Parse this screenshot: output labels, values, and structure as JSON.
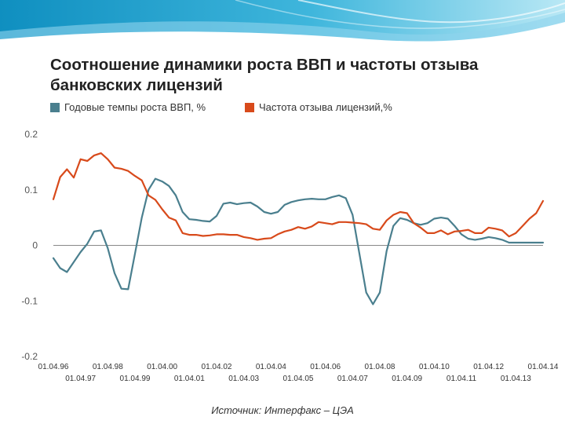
{
  "title": "Соотношение динамики роста ВВП и частоты отзыва банковских лицензий",
  "source": "Источник: Интерфакс – ЦЭА",
  "colors": {
    "gdp": "#4a7f8e",
    "revocation": "#d84a1b",
    "axis": "#555555"
  },
  "chart_data": {
    "type": "line",
    "title": "Соотношение динамики роста ВВП и частоты отзыва банковских лицензий",
    "xlabel": "",
    "ylabel": "",
    "ylim": [
      -0.2,
      0.2
    ],
    "yticks": [
      "0.2",
      "0.1",
      "0",
      "-0.1",
      "-0.2"
    ],
    "ytick_values": [
      0.2,
      0.1,
      0,
      -0.1,
      -0.2
    ],
    "xticks": [
      "01.04.96",
      "01.04.97",
      "01.04.98",
      "01.04.99",
      "01.04.00",
      "01.04.01",
      "01.04.02",
      "01.04.03",
      "01.04.04",
      "01.04.05",
      "01.04.06",
      "01.04.07",
      "01.04.08",
      "01.04.09",
      "01.04.10",
      "01.04.11",
      "01.04.12",
      "01.04.13",
      "01.04.14"
    ],
    "x_range": [
      1996.25,
      2014.25
    ],
    "grid": false,
    "legend_position": "top",
    "series": [
      {
        "name": "Годовые темпы роста ВВП, %",
        "color": "#4a7f8e",
        "x": [
          1996.25,
          1996.5,
          1996.75,
          1997.0,
          1997.25,
          1997.5,
          1997.75,
          1998.0,
          1998.25,
          1998.5,
          1998.75,
          1999.0,
          1999.25,
          1999.5,
          1999.75,
          2000.0,
          2000.25,
          2000.5,
          2000.75,
          2001.0,
          2001.25,
          2001.5,
          2001.75,
          2002.0,
          2002.25,
          2002.5,
          2002.75,
          2003.0,
          2003.25,
          2003.5,
          2003.75,
          2004.0,
          2004.25,
          2004.5,
          2004.75,
          2005.0,
          2005.25,
          2005.5,
          2005.75,
          2006.0,
          2006.25,
          2006.5,
          2006.75,
          2007.0,
          2007.25,
          2007.5,
          2007.75,
          2008.0,
          2008.25,
          2008.5,
          2008.75,
          2009.0,
          2009.25,
          2009.5,
          2009.75,
          2010.0,
          2010.25,
          2010.5,
          2010.75,
          2011.0,
          2011.25,
          2011.5,
          2011.75,
          2012.0,
          2012.25,
          2012.5,
          2012.75,
          2013.0,
          2013.25,
          2013.5,
          2013.75,
          2014.0,
          2014.25
        ],
        "values": [
          -0.023,
          -0.041,
          -0.048,
          -0.03,
          -0.012,
          0.003,
          0.025,
          0.027,
          -0.005,
          -0.05,
          -0.078,
          -0.079,
          -0.015,
          0.05,
          0.1,
          0.12,
          0.115,
          0.107,
          0.09,
          0.06,
          0.047,
          0.046,
          0.044,
          0.043,
          0.053,
          0.075,
          0.077,
          0.074,
          0.076,
          0.077,
          0.07,
          0.06,
          0.057,
          0.06,
          0.073,
          0.078,
          0.081,
          0.083,
          0.084,
          0.083,
          0.083,
          0.087,
          0.09,
          0.085,
          0.055,
          -0.015,
          -0.085,
          -0.106,
          -0.085,
          -0.01,
          0.035,
          0.049,
          0.046,
          0.04,
          0.037,
          0.04,
          0.048,
          0.05,
          0.048,
          0.035,
          0.02,
          0.012,
          0.01,
          0.012,
          0.015,
          0.013,
          0.01,
          0.005,
          0.005,
          0.005,
          0.005,
          0.005,
          0.005
        ]
      },
      {
        "name": "Частота отзыва лицензий,%",
        "color": "#d84a1b",
        "x": [
          1996.25,
          1996.5,
          1996.75,
          1997.0,
          1997.25,
          1997.5,
          1997.75,
          1998.0,
          1998.25,
          1998.5,
          1998.75,
          1999.0,
          1999.25,
          1999.5,
          1999.75,
          2000.0,
          2000.25,
          2000.5,
          2000.75,
          2001.0,
          2001.25,
          2001.5,
          2001.75,
          2002.0,
          2002.25,
          2002.5,
          2002.75,
          2003.0,
          2003.25,
          2003.5,
          2003.75,
          2004.0,
          2004.25,
          2004.5,
          2004.75,
          2005.0,
          2005.25,
          2005.5,
          2005.75,
          2006.0,
          2006.25,
          2006.5,
          2006.75,
          2007.0,
          2007.25,
          2007.5,
          2007.75,
          2008.0,
          2008.25,
          2008.5,
          2008.75,
          2009.0,
          2009.25,
          2009.5,
          2009.75,
          2010.0,
          2010.25,
          2010.5,
          2010.75,
          2011.0,
          2011.25,
          2011.5,
          2011.75,
          2012.0,
          2012.25,
          2012.5,
          2012.75,
          2013.0,
          2013.25,
          2013.5,
          2013.75,
          2014.0,
          2014.25
        ],
        "values": [
          0.083,
          0.123,
          0.137,
          0.122,
          0.155,
          0.152,
          0.162,
          0.166,
          0.155,
          0.14,
          0.138,
          0.134,
          0.125,
          0.117,
          0.09,
          0.082,
          0.065,
          0.05,
          0.045,
          0.022,
          0.019,
          0.019,
          0.017,
          0.018,
          0.02,
          0.02,
          0.019,
          0.019,
          0.015,
          0.013,
          0.01,
          0.012,
          0.013,
          0.02,
          0.025,
          0.028,
          0.033,
          0.03,
          0.034,
          0.042,
          0.04,
          0.038,
          0.042,
          0.042,
          0.041,
          0.04,
          0.038,
          0.03,
          0.028,
          0.045,
          0.055,
          0.06,
          0.058,
          0.04,
          0.032,
          0.022,
          0.022,
          0.027,
          0.02,
          0.025,
          0.026,
          0.028,
          0.022,
          0.022,
          0.032,
          0.03,
          0.027,
          0.016,
          0.022,
          0.035,
          0.048,
          0.058,
          0.08
        ]
      }
    ]
  }
}
